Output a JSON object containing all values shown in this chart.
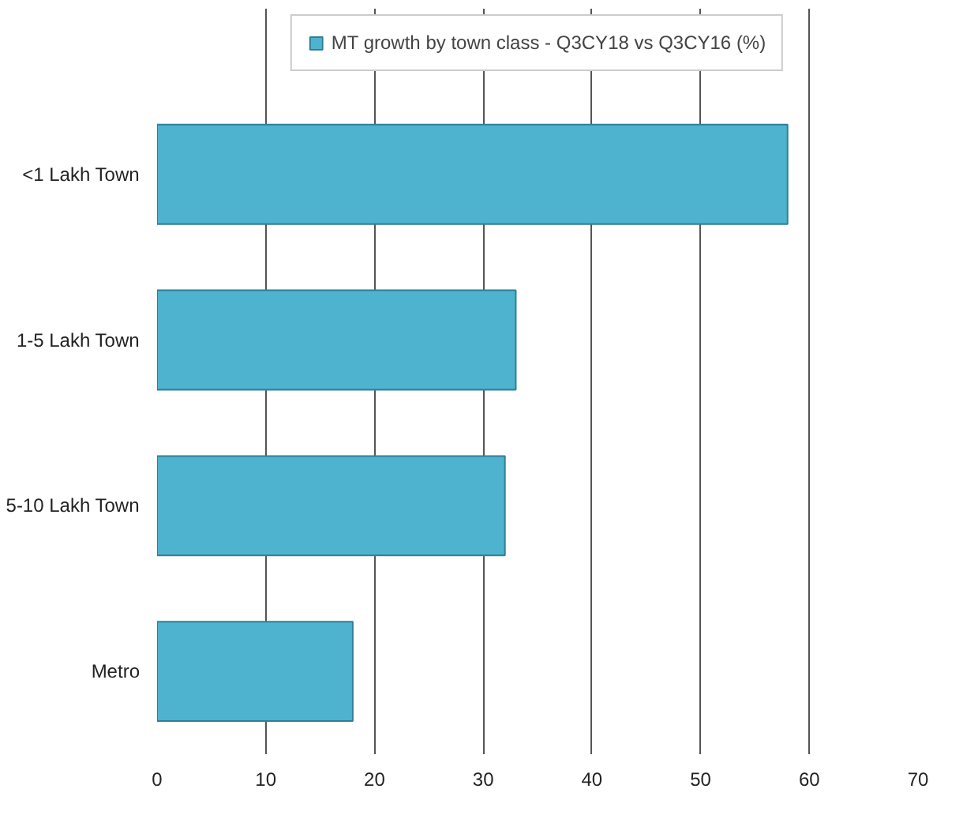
{
  "chart_data": {
    "type": "bar",
    "orientation": "horizontal",
    "categories": [
      "<1 Lakh Town",
      "1-5 Lakh Town",
      "5-10 Lakh Town",
      "Metro"
    ],
    "series": [
      {
        "name": "MT growth by town class - Q3CY18 vs Q3CY16 (%)",
        "color": "#4eb3cf",
        "values": [
          58,
          33,
          32,
          18
        ]
      }
    ],
    "xlim": [
      0,
      70
    ],
    "xticks": [
      0,
      10,
      20,
      30,
      40,
      50,
      60,
      70
    ],
    "grid": "x",
    "legend": "top"
  }
}
